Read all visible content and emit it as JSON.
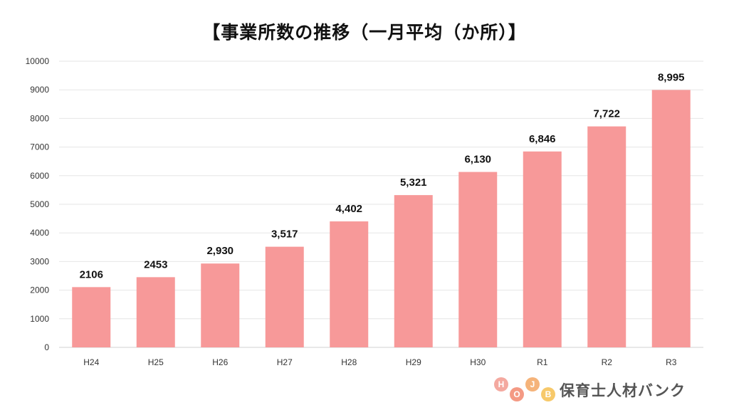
{
  "chart_data": {
    "type": "bar",
    "title": "【事業所数の推移（一月平均（か所）】",
    "categories": [
      "H24",
      "H25",
      "H26",
      "H27",
      "H28",
      "H29",
      "H30",
      "R1",
      "R2",
      "R3"
    ],
    "values": [
      2106,
      2453,
      2930,
      3517,
      4402,
      5321,
      6130,
      6846,
      7722,
      8995
    ],
    "value_labels": [
      "2106",
      "2453",
      "2,930",
      "3,517",
      "4,402",
      "5,321",
      "6,130",
      "6,846",
      "7,722",
      "8,995"
    ],
    "ylim": [
      0,
      10000
    ],
    "yticks": [
      0,
      1000,
      2000,
      3000,
      4000,
      5000,
      6000,
      7000,
      8000,
      9000,
      10000
    ],
    "xlabel": "",
    "ylabel": "",
    "grid": true,
    "bar_color": "#f79999"
  },
  "logo": {
    "letters": [
      "H",
      "O",
      "J",
      "B"
    ],
    "text": "保育士人材バンク",
    "colors": [
      "#f4a9a0",
      "#f49a84",
      "#f5b37a",
      "#f7c96a"
    ]
  }
}
